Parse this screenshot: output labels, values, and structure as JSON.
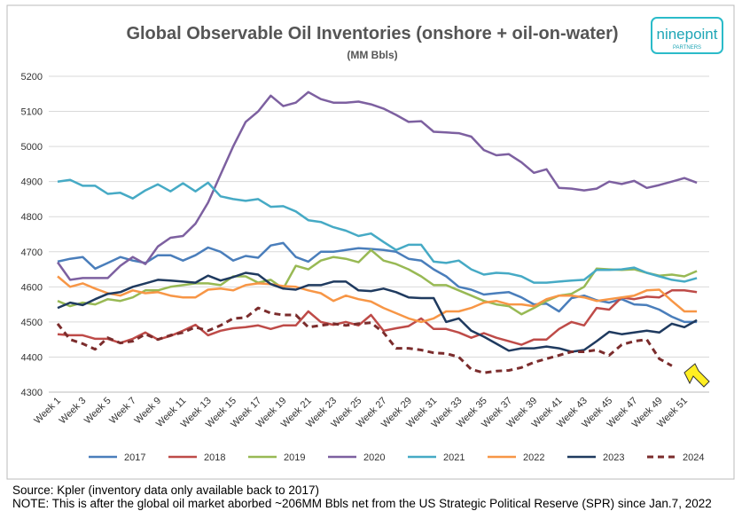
{
  "chart_data": {
    "type": "line",
    "title": "Global Observable Oil Inventories (onshore + oil-on-water)",
    "subtitle": "(MM Bbls)",
    "logo": {
      "name": "ninepoint",
      "tagline": "PARTNERS"
    },
    "categories": [
      "Week 1",
      null,
      "Week 3",
      null,
      "Week 5",
      null,
      "Week 7",
      null,
      "Week 9",
      null,
      "Week 11",
      null,
      "Week 13",
      null,
      "Week 15",
      null,
      "Week 17",
      null,
      "Week 19",
      null,
      "Week 21",
      null,
      "Week 23",
      null,
      "Week 25",
      null,
      "Week 27",
      null,
      "Week 29",
      null,
      "Week 31",
      null,
      "Week 33",
      null,
      "Week 35",
      null,
      "Week 37",
      null,
      "Week 39",
      null,
      "Week 41",
      null,
      "Week 43",
      null,
      "Week 45",
      null,
      "Week 47",
      null,
      "Week 49",
      null,
      "Week 51",
      null
    ],
    "ylim": [
      4300,
      5200
    ],
    "yticks": [
      4300,
      4400,
      4500,
      4600,
      4700,
      4800,
      4900,
      5000,
      5100,
      5200
    ],
    "grid": true,
    "legend": "bottom",
    "series": [
      {
        "name": "2017",
        "color": "#4a7ebb",
        "values": [
          4672,
          4680,
          4685,
          4652,
          4668,
          4685,
          4675,
          4668,
          4690,
          4690,
          4675,
          4690,
          4712,
          4700,
          4675,
          4688,
          4683,
          4718,
          4725,
          4685,
          4672,
          4700,
          4700,
          4705,
          4710,
          4708,
          4705,
          4700,
          4680,
          4675,
          4650,
          4630,
          4600,
          4592,
          4578,
          4582,
          4585,
          4570,
          4550,
          4552,
          4530,
          4568,
          4575,
          4562,
          4555,
          4565,
          4550,
          4548,
          4535,
          4515,
          4500,
          4500
        ]
      },
      {
        "name": "2018",
        "color": "#be4b48",
        "values": [
          4465,
          4462,
          4462,
          4452,
          4452,
          4440,
          4452,
          4470,
          4450,
          4460,
          4475,
          4492,
          4462,
          4475,
          4482,
          4485,
          4490,
          4480,
          4490,
          4490,
          4530,
          4500,
          4492,
          4500,
          4490,
          4520,
          4475,
          4482,
          4488,
          4510,
          4480,
          4480,
          4470,
          4455,
          4468,
          4455,
          4445,
          4435,
          4450,
          4450,
          4480,
          4500,
          4490,
          4540,
          4535,
          4570,
          4565,
          4572,
          4570,
          4590,
          4590,
          4585
        ]
      },
      {
        "name": "2019",
        "color": "#98b954",
        "values": [
          4560,
          4545,
          4555,
          4550,
          4565,
          4560,
          4570,
          4590,
          4590,
          4600,
          4605,
          4610,
          4610,
          4605,
          4630,
          4630,
          4612,
          4620,
          4595,
          4660,
          4650,
          4675,
          4685,
          4680,
          4670,
          4705,
          4675,
          4665,
          4650,
          4630,
          4605,
          4605,
          4590,
          4575,
          4560,
          4550,
          4545,
          4522,
          4540,
          4560,
          4575,
          4580,
          4600,
          4652,
          4650,
          4648,
          4650,
          4640,
          4632,
          4635,
          4630,
          4645
        ]
      },
      {
        "name": "2020",
        "color": "#7d60a0",
        "values": [
          4670,
          4620,
          4625,
          4625,
          4625,
          4660,
          4685,
          4665,
          4715,
          4740,
          4745,
          4780,
          4840,
          4920,
          5000,
          5070,
          5100,
          5145,
          5115,
          5125,
          5155,
          5135,
          5125,
          5125,
          5128,
          5120,
          5108,
          5090,
          5070,
          5072,
          5042,
          5040,
          5038,
          5028,
          4990,
          4975,
          4978,
          4955,
          4925,
          4935,
          4882,
          4880,
          4875,
          4880,
          4900,
          4893,
          4902,
          4882,
          4890,
          4900,
          4910,
          4897
        ]
      },
      {
        "name": "2021",
        "color": "#46aac5",
        "values": [
          4900,
          4905,
          4888,
          4888,
          4865,
          4868,
          4852,
          4875,
          4892,
          4872,
          4895,
          4872,
          4897,
          4858,
          4850,
          4845,
          4850,
          4828,
          4830,
          4815,
          4790,
          4785,
          4770,
          4760,
          4745,
          4752,
          4728,
          4705,
          4720,
          4720,
          4672,
          4668,
          4675,
          4650,
          4635,
          4640,
          4638,
          4630,
          4612,
          4612,
          4615,
          4618,
          4620,
          4648,
          4648,
          4650,
          4655,
          4640,
          4630,
          4620,
          4615,
          4625
        ]
      },
      {
        "name": "2022",
        "color": "#f79646",
        "values": [
          4630,
          4600,
          4610,
          4595,
          4582,
          4575,
          4590,
          4582,
          4585,
          4575,
          4570,
          4570,
          4592,
          4595,
          4590,
          4605,
          4610,
          4608,
          4602,
          4600,
          4590,
          4582,
          4560,
          4575,
          4565,
          4558,
          4540,
          4525,
          4510,
          4500,
          4510,
          4530,
          4530,
          4540,
          4555,
          4560,
          4550,
          4550,
          4545,
          4565,
          4575,
          4575,
          4570,
          4560,
          4565,
          4570,
          4575,
          4590,
          4592,
          4560,
          4530,
          4530
        ]
      },
      {
        "name": "2023",
        "color": "#1f3a5f",
        "values": [
          4540,
          4555,
          4548,
          4565,
          4580,
          4585,
          4600,
          4610,
          4620,
          4618,
          4615,
          4612,
          4632,
          4618,
          4628,
          4640,
          4635,
          4608,
          4595,
          4592,
          4605,
          4605,
          4615,
          4615,
          4590,
          4588,
          4595,
          4585,
          4570,
          4568,
          4568,
          4500,
          4510,
          4475,
          4458,
          4438,
          4418,
          4425,
          4425,
          4430,
          4425,
          4415,
          4420,
          4445,
          4472,
          4465,
          4470,
          4475,
          4470,
          4495,
          4485,
          4505
        ]
      },
      {
        "name": "2024",
        "color": "#7b2c2c",
        "dashed": true,
        "values": [
          4495,
          4450,
          4438,
          4422,
          4455,
          4440,
          4445,
          4465,
          4450,
          4462,
          4470,
          4485,
          4475,
          4490,
          4510,
          4512,
          4540,
          4525,
          4520,
          4520,
          4485,
          4490,
          4495,
          4490,
          4495,
          4498,
          4470,
          4425,
          4425,
          4420,
          4412,
          4410,
          4400,
          4365,
          4355,
          4360,
          4362,
          4370,
          4385,
          4395,
          4405,
          4415,
          4415,
          4420,
          4405,
          4435,
          4445,
          4450,
          4395,
          4375,
          null,
          null
        ]
      }
    ],
    "notes": [
      "Source: Kpler (inventory data only available back to 2017)",
      "NOTE: This is after the global oil market aborbed ~206MM Bbls net from the US Strategic Political Reserve (SPR) since Jan.7, 2022"
    ]
  }
}
